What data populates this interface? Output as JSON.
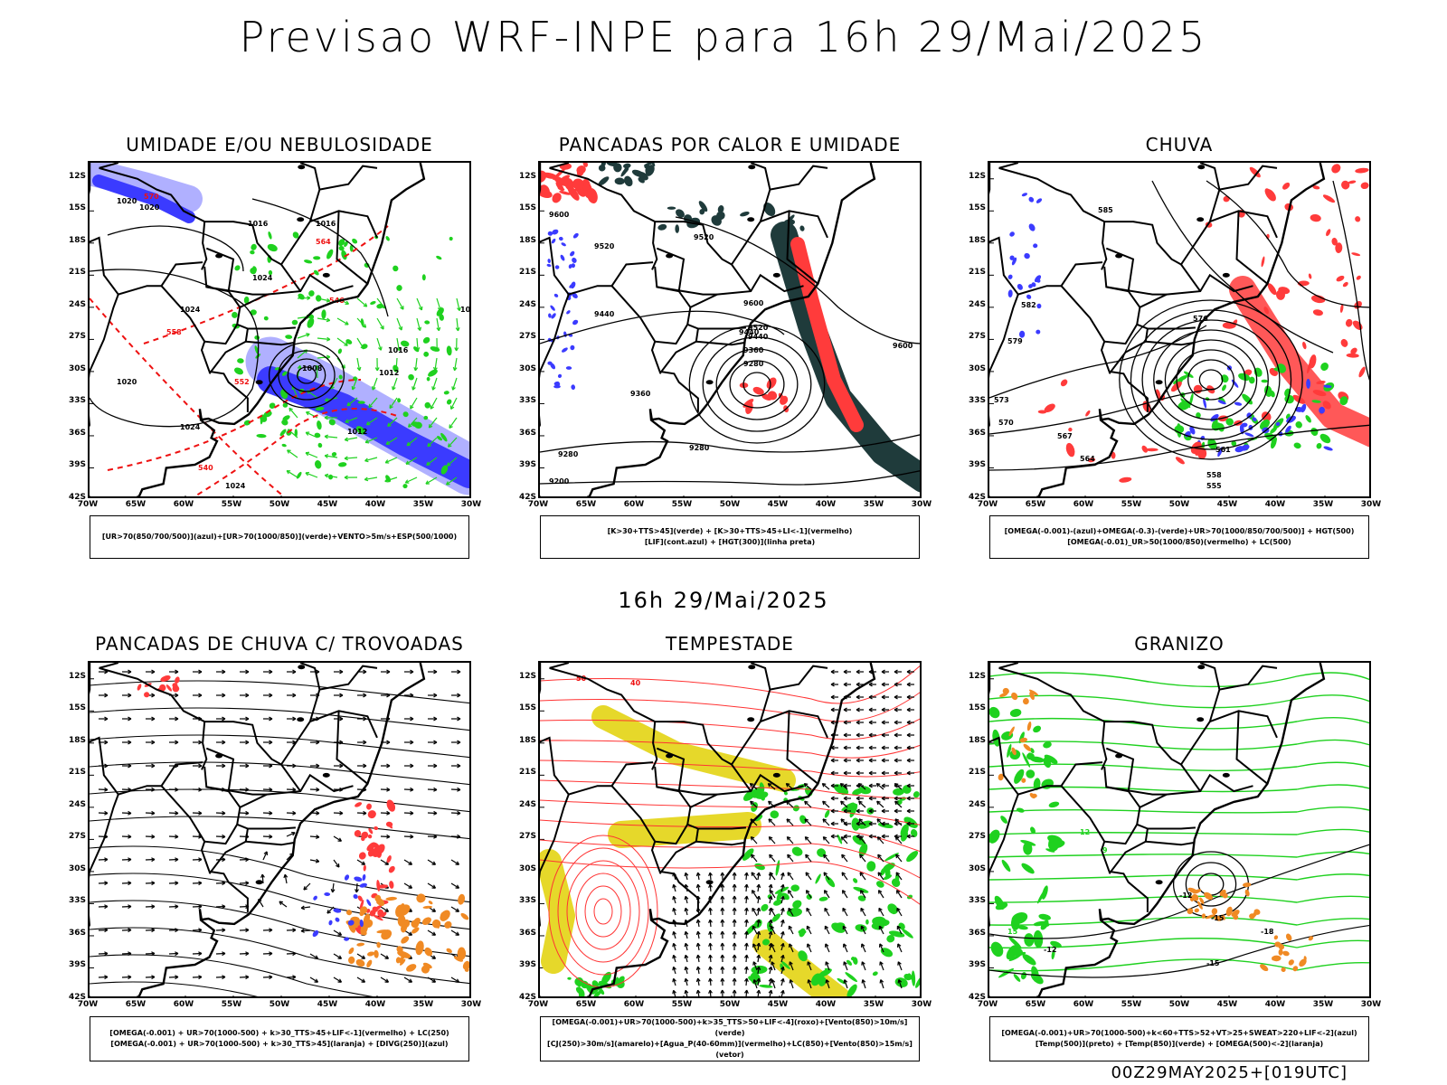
{
  "header": {
    "title": "Previsao WRF-INPE  para 16h 29/Mai/2025",
    "middle_title": "16h 29/Mai/2025",
    "footer": "00Z29MAY2025+[019UTC]"
  },
  "axes": {
    "lat_labels": [
      "12S",
      "15S",
      "18S",
      "21S",
      "24S",
      "27S",
      "30S",
      "33S",
      "36S",
      "39S",
      "42S"
    ],
    "lon_labels": [
      "70W",
      "65W",
      "60W",
      "55W",
      "50W",
      "45W",
      "40W",
      "35W",
      "30W"
    ]
  },
  "colors": {
    "red": "#ff3b3b",
    "blue": "#3b3bff",
    "lightblue": "#b0b0ff",
    "green": "#1fd11f",
    "darkteal": "#1f3b3b",
    "yellow": "#e6d82a",
    "orange": "#f08a24"
  },
  "panels": [
    {
      "title": "UMIDADE E/OU NEBULOSIDADE",
      "legend": [
        "[UR>70(850/700/500)](azul)+[UR>70(1000/850)](verde)+VENTO>5m/s+ESP(500/1000)"
      ],
      "labels": [
        "1020",
        "1020",
        "1016",
        "1016",
        "1024",
        "1024",
        "1020",
        "1024",
        "1012",
        "1008",
        "1012",
        "1016",
        "1020",
        "1024",
        "570",
        "564",
        "558",
        "552",
        "546",
        "540"
      ]
    },
    {
      "title": "PANCADAS POR CALOR E UMIDADE",
      "legend": [
        "[K>30+TTS>45](verde) + [K>30+TTS>45+LI<-1](vermelho)",
        "[LIF](cont.azul) + [HGT(300)](linha preta)"
      ],
      "labels": [
        "9520",
        "9600",
        "9520",
        "9440",
        "9360",
        "9280",
        "9200",
        "9280",
        "9360",
        "9440",
        "9520",
        "9600",
        "9440",
        "9280",
        "9600"
      ]
    },
    {
      "title": "CHUVA",
      "legend": [
        "[OMEGA(-0.001)-(azul)+OMEGA(-0.3)-(verde)+UR>70(1000/850/700/500)] + HGT(500)",
        "[OMEGA(-0.01)_UR>50(1000/850)(vermelho) + LC(500)"
      ],
      "labels": [
        "585",
        "582",
        "579",
        "576",
        "573",
        "570",
        "567",
        "564",
        "561",
        "558",
        "555"
      ]
    },
    {
      "title": "PANCADAS DE CHUVA C/ TROVOADAS",
      "legend": [
        "[OMEGA(-0.001) + UR>70(1000-500) + k>30_TTS>45+LIF<-1](vermelho) + LC(250)",
        "[OMEGA(-0.001) + UR>70(1000-500) + k>30_TTS>45](laranja) + [DIVG(250)](azul)"
      ],
      "labels": []
    },
    {
      "title": "TEMPESTADE",
      "legend": [
        "[OMEGA(-0.001)+UR>70(1000-500)+k>35_TTS>50+LIF<-4](roxo)+[Vento(850)>10m/s](verde)",
        "[CJ(250)>30m/s](amarelo)+[Agua_P(40-60mm)](vermelho)+LC(850)+[Vento(850)>15m/s](vetor)"
      ],
      "labels": [
        "50",
        "40"
      ]
    },
    {
      "title": "GRANIZO",
      "legend": [
        "[OMEGA(-0.001)+UR>70(1000-500)+k<60+TTS>52+VT>25+SWEAT>220+LIF<-2](azul)",
        "[Temp(500)](preto) + [Temp(850)](verde) + [OMEGA(500)<-2](laranja)"
      ],
      "labels": [
        "-12",
        "-15",
        "-18",
        "-15",
        "-12",
        "15",
        "12",
        "9"
      ]
    }
  ]
}
